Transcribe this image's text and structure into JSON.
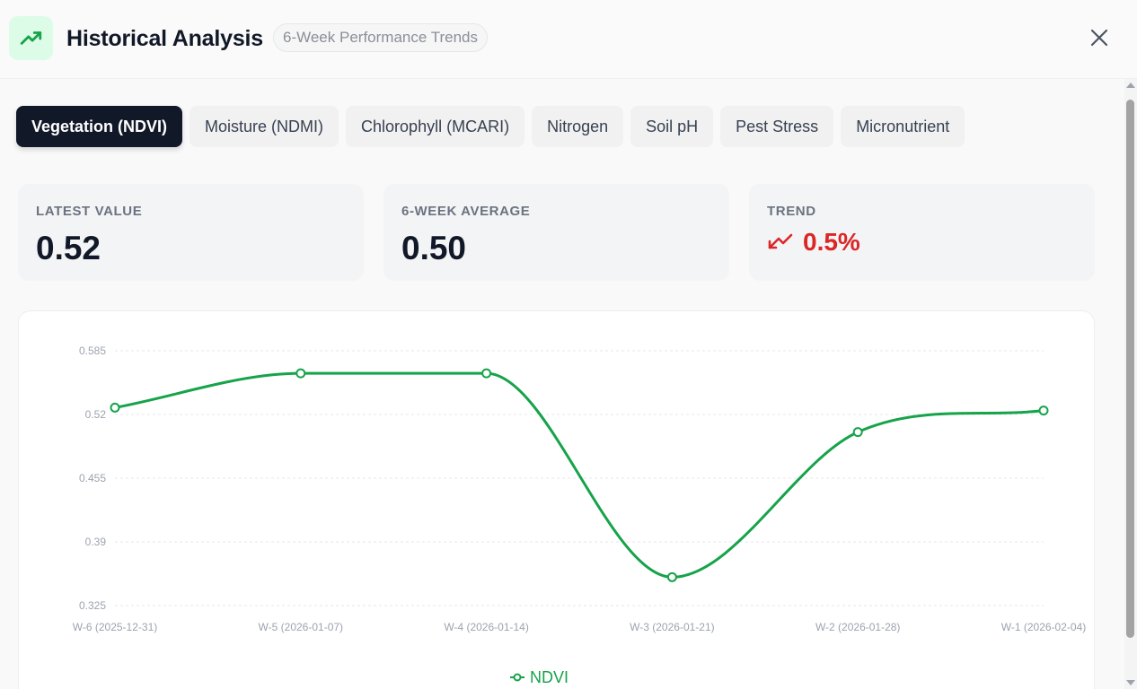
{
  "header": {
    "title": "Historical Analysis",
    "subtitle": "6-Week Performance Trends",
    "logo_icon": "trending-up-icon",
    "close_icon": "close-icon"
  },
  "tabs": [
    {
      "label": "Vegetation (NDVI)",
      "active": true
    },
    {
      "label": "Moisture (NDMI)",
      "active": false
    },
    {
      "label": "Chlorophyll (MCARI)",
      "active": false
    },
    {
      "label": "Nitrogen",
      "active": false
    },
    {
      "label": "Soil pH",
      "active": false
    },
    {
      "label": "Pest Stress",
      "active": false
    },
    {
      "label": "Micronutrient",
      "active": false
    }
  ],
  "stats": {
    "latest": {
      "label": "LATEST VALUE",
      "value": "0.52"
    },
    "average": {
      "label": "6-WEEK AVERAGE",
      "value": "0.50"
    },
    "trend": {
      "label": "TREND",
      "value": "0.5%",
      "direction": "down",
      "icon": "trending-down-icon",
      "color": "#dc2626"
    }
  },
  "colors": {
    "accent": "#16a34a",
    "dark": "#111827",
    "negative": "#dc2626"
  },
  "chart_data": {
    "type": "line",
    "categories": [
      "W-6 (2025-12-31)",
      "W-5 (2026-01-07)",
      "W-4 (2026-01-14)",
      "W-3 (2026-01-21)",
      "W-2 (2026-01-28)",
      "W-1 (2026-02-04)"
    ],
    "series": [
      {
        "name": "NDVI",
        "values": [
          0.527,
          0.562,
          0.562,
          0.354,
          0.502,
          0.524
        ],
        "color": "#16a34a"
      }
    ],
    "yticks": [
      "0.325",
      "0.39",
      "0.455",
      "0.52",
      "0.585"
    ],
    "ylim": [
      0.325,
      0.585
    ],
    "grid": true,
    "legend": "bottom"
  }
}
